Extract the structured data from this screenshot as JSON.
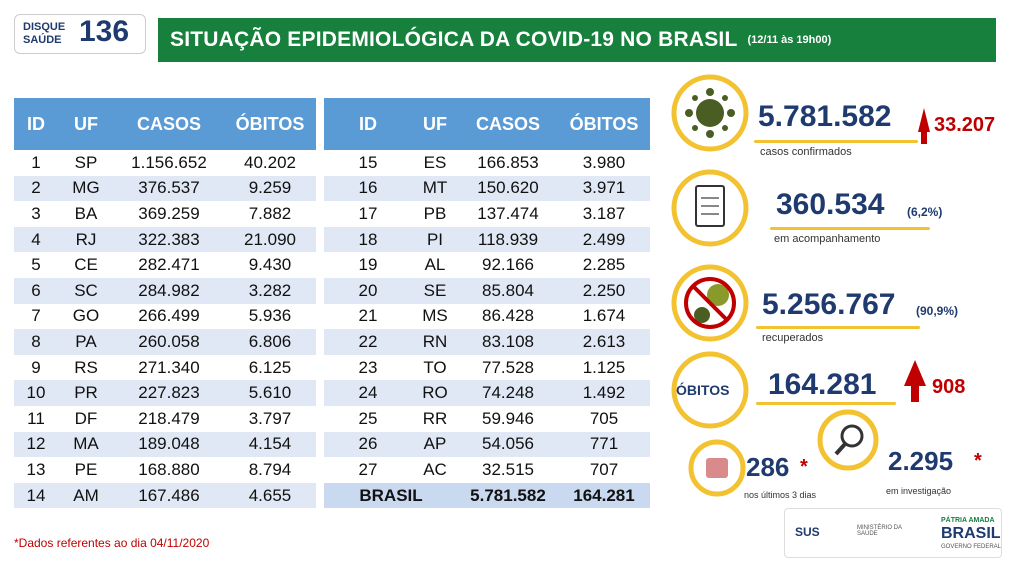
{
  "header": {
    "logo_line1": "DISQUE",
    "logo_line2": "SAÚDE",
    "logo_number": "136",
    "title": "SITUAÇÃO EPIDEMIOLÓGICA DA COVID-19 NO BRASIL",
    "date": "(12/11 às 19h00)"
  },
  "table": {
    "columns": [
      "ID",
      "UF",
      "CASOS",
      "ÓBITOS"
    ],
    "rows": [
      [
        "1",
        "SP",
        "1.156.652",
        "40.202"
      ],
      [
        "2",
        "MG",
        "376.537",
        "9.259"
      ],
      [
        "3",
        "BA",
        "369.259",
        "7.882"
      ],
      [
        "4",
        "RJ",
        "322.383",
        "21.090"
      ],
      [
        "5",
        "CE",
        "282.471",
        "9.430"
      ],
      [
        "6",
        "SC",
        "284.982",
        "3.282"
      ],
      [
        "7",
        "GO",
        "266.499",
        "5.936"
      ],
      [
        "8",
        "PA",
        "260.058",
        "6.806"
      ],
      [
        "9",
        "RS",
        "271.340",
        "6.125"
      ],
      [
        "10",
        "PR",
        "227.823",
        "5.610"
      ],
      [
        "11",
        "DF",
        "218.479",
        "3.797"
      ],
      [
        "12",
        "MA",
        "189.048",
        "4.154"
      ],
      [
        "13",
        "PE",
        "168.880",
        "8.794"
      ],
      [
        "14",
        "AM",
        "167.486",
        "4.655"
      ],
      [
        "15",
        "ES",
        "166.853",
        "3.980"
      ],
      [
        "16",
        "MT",
        "150.620",
        "3.971"
      ],
      [
        "17",
        "PB",
        "137.474",
        "3.187"
      ],
      [
        "18",
        "PI",
        "118.939",
        "2.499"
      ],
      [
        "19",
        "AL",
        "92.166",
        "2.285"
      ],
      [
        "20",
        "SE",
        "85.804",
        "2.250"
      ],
      [
        "21",
        "MS",
        "86.428",
        "1.674"
      ],
      [
        "22",
        "RN",
        "83.108",
        "2.613"
      ],
      [
        "23",
        "TO",
        "77.528",
        "1.125"
      ],
      [
        "24",
        "RO",
        "74.248",
        "1.492"
      ],
      [
        "25",
        "RR",
        "59.946",
        "705"
      ],
      [
        "26",
        "AP",
        "54.056",
        "771"
      ],
      [
        "27",
        "AC",
        "32.515",
        "707"
      ]
    ],
    "total": [
      "BRASIL",
      "5.781.582",
      "164.281"
    ]
  },
  "stats": {
    "cases": {
      "value": "5.781.582",
      "increase": "33.207",
      "label": "casos confirmados"
    },
    "monitoring": {
      "value": "360.534",
      "percent": "(6,2%)",
      "label": "em acompanhamento"
    },
    "recovered": {
      "value": "5.256.767",
      "percent": "(90,9%)",
      "label": "recuperados"
    },
    "deaths": {
      "badge": "ÓBITOS",
      "value": "164.281",
      "increase": "908"
    },
    "recent": {
      "value": "286",
      "mark": "*",
      "label": "nos últimos 3 dias"
    },
    "investigation": {
      "value": "2.295",
      "mark": "*",
      "label": "em investigação"
    }
  },
  "footnote": "*Dados referentes ao dia 04/11/2020",
  "logos": {
    "sus": "SUS",
    "ministry": "MINISTÉRIO DA SAÚDE",
    "slogan": "PÁTRIA AMADA",
    "brasil": "BRASIL",
    "government": "GOVERNO FEDERAL"
  }
}
